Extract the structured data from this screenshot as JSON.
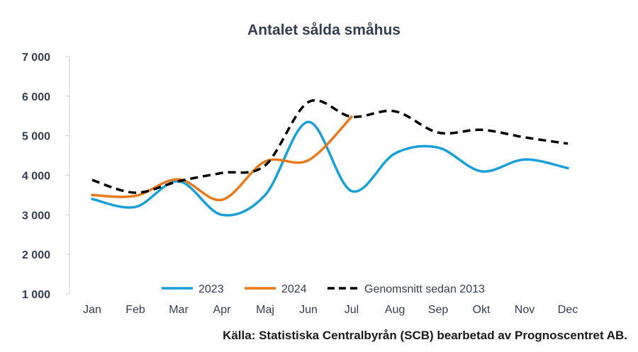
{
  "chart_data": {
    "type": "line",
    "title": "Antalet sålda småhus",
    "source": "Källa: Statistiska Centralbyrån (SCB) bearbetad av Prognoscentret AB.",
    "categories": [
      "Jan",
      "Feb",
      "Mar",
      "Apr",
      "Maj",
      "Jun",
      "Jul",
      "Aug",
      "Sep",
      "Okt",
      "Nov",
      "Dec"
    ],
    "ylim": [
      1000,
      7000
    ],
    "yticks": [
      1000,
      2000,
      3000,
      4000,
      5000,
      6000,
      7000
    ],
    "ytick_labels": [
      "1 000",
      "2 000",
      "3 000",
      "4 000",
      "5 000",
      "6 000",
      "7 000"
    ],
    "grid": false,
    "legend_position": "bottom",
    "series": [
      {
        "name": "2023",
        "color": "#1a9fd9",
        "dash": "solid",
        "values": [
          3400,
          3200,
          3850,
          3000,
          3500,
          5350,
          3600,
          4550,
          4700,
          4100,
          4400,
          4180
        ]
      },
      {
        "name": "2024",
        "color": "#e8791a",
        "dash": "solid",
        "values": [
          3500,
          3480,
          3900,
          3380,
          4350,
          4380,
          5480,
          null,
          null,
          null,
          null,
          null
        ]
      },
      {
        "name": "Genomsnitt sedan 2013",
        "color": "#000000",
        "dash": "dashed",
        "values": [
          3880,
          3560,
          3850,
          4060,
          4250,
          5850,
          5480,
          5620,
          5080,
          5150,
          4960,
          4800
        ]
      }
    ]
  }
}
